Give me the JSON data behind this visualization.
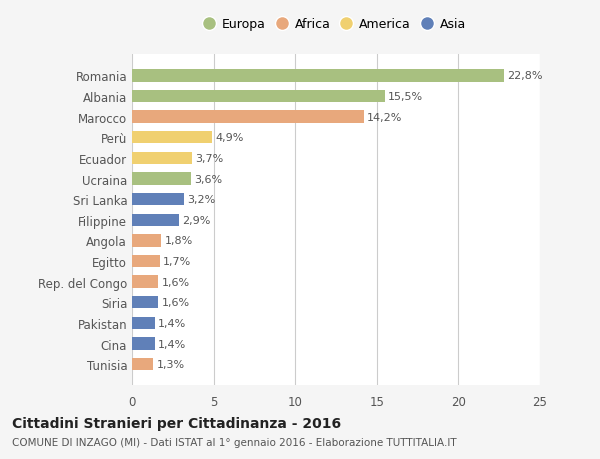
{
  "categories": [
    "Tunisia",
    "Cina",
    "Pakistan",
    "Siria",
    "Rep. del Congo",
    "Egitto",
    "Angola",
    "Filippine",
    "Sri Lanka",
    "Ucraina",
    "Ecuador",
    "Perù",
    "Marocco",
    "Albania",
    "Romania"
  ],
  "values": [
    1.3,
    1.4,
    1.4,
    1.6,
    1.6,
    1.7,
    1.8,
    2.9,
    3.2,
    3.6,
    3.7,
    4.9,
    14.2,
    15.5,
    22.8
  ],
  "labels": [
    "1,3%",
    "1,4%",
    "1,4%",
    "1,6%",
    "1,6%",
    "1,7%",
    "1,8%",
    "2,9%",
    "3,2%",
    "3,6%",
    "3,7%",
    "4,9%",
    "14,2%",
    "15,5%",
    "22,8%"
  ],
  "continents": [
    "Africa",
    "Asia",
    "Asia",
    "Asia",
    "Africa",
    "Africa",
    "Africa",
    "Asia",
    "Asia",
    "Europa",
    "America",
    "America",
    "Africa",
    "Europa",
    "Europa"
  ],
  "continent_colors": {
    "Europa": "#a8c080",
    "Africa": "#e8a87c",
    "America": "#f0d070",
    "Asia": "#6080b8"
  },
  "legend_order": [
    "Europa",
    "Africa",
    "America",
    "Asia"
  ],
  "xlim": [
    0,
    25
  ],
  "xticks": [
    0,
    5,
    10,
    15,
    20,
    25
  ],
  "title": "Cittadini Stranieri per Cittadinanza - 2016",
  "subtitle": "COMUNE DI INZAGO (MI) - Dati ISTAT al 1° gennaio 2016 - Elaborazione TUTTITALIA.IT",
  "bg_color": "#f5f5f5",
  "bar_bg_color": "#ffffff",
  "grid_color": "#cccccc",
  "text_color": "#555555",
  "title_color": "#222222",
  "subtitle_color": "#555555"
}
